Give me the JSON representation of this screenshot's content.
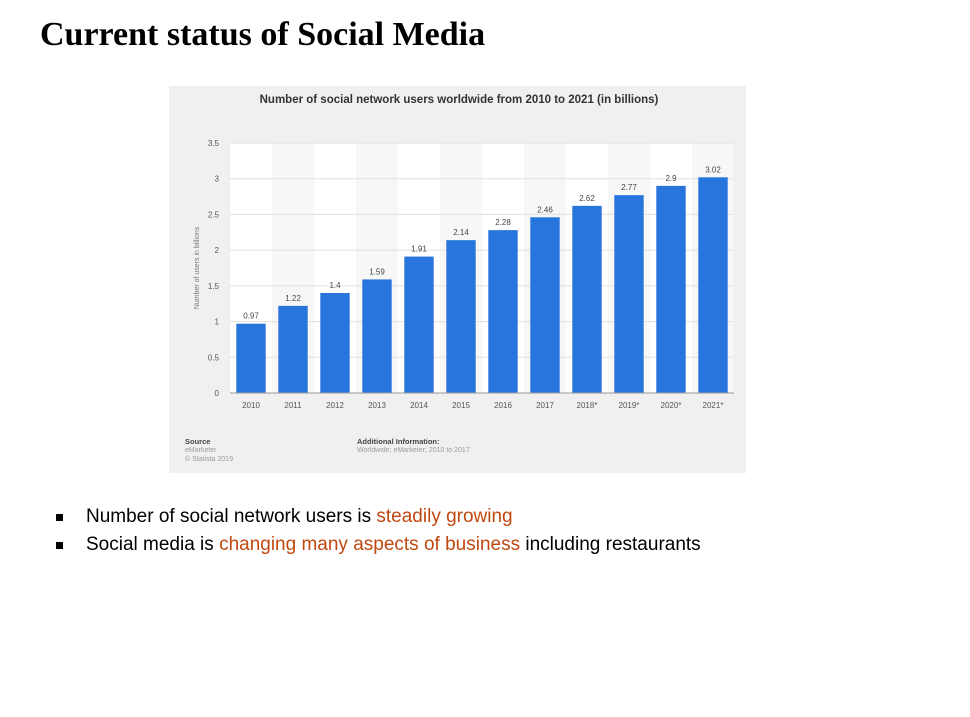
{
  "slide": {
    "title": "Current status of Social Media",
    "bullets": [
      {
        "before": "Number of social network users is ",
        "highlight": "steadily growing",
        "after": ""
      },
      {
        "before": "Social media is ",
        "highlight": "changing many aspects of business",
        "after": " including restaurants"
      }
    ]
  },
  "chart_data": {
    "type": "bar",
    "title": "Number of social network users worldwide from 2010 to 2021 (in billions)",
    "ylabel": "Number of users in billions",
    "xlabel": "",
    "categories": [
      "2010",
      "2011",
      "2012",
      "2013",
      "2014",
      "2015",
      "2016",
      "2017",
      "2018*",
      "2019*",
      "2020*",
      "2021*"
    ],
    "values": [
      0.97,
      1.22,
      1.4,
      1.59,
      1.91,
      2.14,
      2.28,
      2.46,
      2.62,
      2.77,
      2.9,
      3.02
    ],
    "value_labels": [
      "0.97",
      "1.22",
      "1.4",
      "1.59",
      "1.91",
      "2.14",
      "2.28",
      "2.46",
      "2.62",
      "2.77",
      "2.9",
      "3.02"
    ],
    "yticks": [
      "0",
      "0.5",
      "1",
      "1.5",
      "2",
      "2.5",
      "3",
      "3.5"
    ],
    "ylim": [
      0,
      3.5
    ],
    "grid": true,
    "bar_color": "#2876dd",
    "source": {
      "label": "Source",
      "lines": [
        "eMarketer",
        "© Statista 2019"
      ]
    },
    "additional_info": {
      "label": "Additional Information:",
      "text": "Worldwide; eMarketer; 2010 to 2017"
    }
  }
}
